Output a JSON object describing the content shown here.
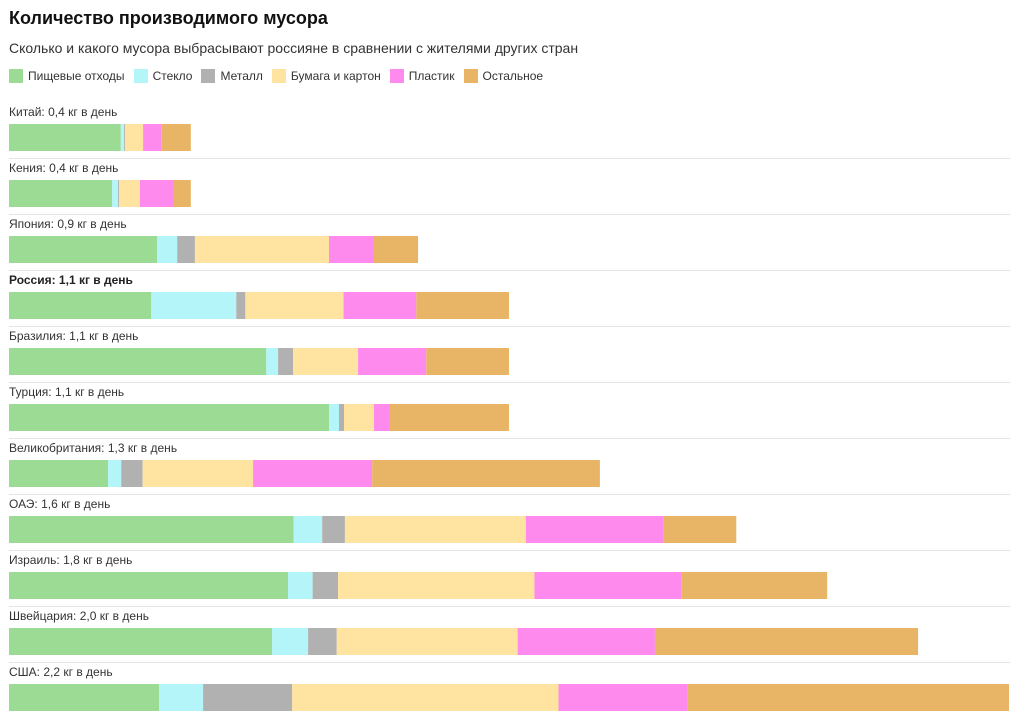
{
  "chart_data": {
    "type": "bar",
    "orientation": "horizontal",
    "stacked": true,
    "title": "Количество производимого мусора",
    "subtitle": "Сколько и какого мусора выбрасывают россияне в сравнении с жителями других стран",
    "legend_placement": "top-left",
    "grid": false,
    "xlim": [
      0,
      2.2
    ],
    "series": [
      {
        "name": "Пищевые отходы",
        "color": "#9cdb94"
      },
      {
        "name": "Стекло",
        "color": "#b3f5f8"
      },
      {
        "name": "Металл",
        "color": "#b1b1b1"
      },
      {
        "name": "Бумага и картон",
        "color": "#ffe3a0"
      },
      {
        "name": "Пластик",
        "color": "#fe8aee"
      },
      {
        "name": "Остальное",
        "color": "#e8b566"
      }
    ],
    "rows": [
      {
        "label": "Китай: 0,4 кг в день",
        "total": 0.4,
        "highlight": false,
        "values": [
          0.246,
          0.007,
          0.002,
          0.04,
          0.04,
          0.065
        ]
      },
      {
        "label": "Кения: 0,4 кг в день",
        "total": 0.4,
        "highlight": false,
        "values": [
          0.227,
          0.013,
          0.002,
          0.046,
          0.075,
          0.037
        ]
      },
      {
        "label": "Япония: 0,9 кг в день",
        "total": 0.9,
        "highlight": false,
        "values": [
          0.326,
          0.044,
          0.039,
          0.295,
          0.099,
          0.097
        ]
      },
      {
        "label": "Россия: 1,1 кг в день",
        "total": 1.1,
        "highlight": true,
        "values": [
          0.313,
          0.187,
          0.02,
          0.216,
          0.16,
          0.204
        ]
      },
      {
        "label": "Бразилия: 1,1 кг в день",
        "total": 1.1,
        "highlight": false,
        "values": [
          0.566,
          0.026,
          0.033,
          0.143,
          0.15,
          0.182
        ]
      },
      {
        "label": "Турция: 1,1 кг в день",
        "total": 1.1,
        "highlight": false,
        "values": [
          0.704,
          0.022,
          0.011,
          0.066,
          0.033,
          0.264
        ]
      },
      {
        "label": "Великобритания: 1,3 кг в день",
        "total": 1.3,
        "highlight": false,
        "values": [
          0.218,
          0.029,
          0.047,
          0.243,
          0.262,
          0.501
        ]
      },
      {
        "label": "ОАЭ: 1,6 кг в день",
        "total": 1.6,
        "highlight": false,
        "values": [
          0.626,
          0.063,
          0.05,
          0.398,
          0.302,
          0.161
        ]
      },
      {
        "label": "Израиль: 1,8 кг в день",
        "total": 1.8,
        "highlight": false,
        "values": [
          0.614,
          0.054,
          0.056,
          0.432,
          0.324,
          0.32
        ]
      },
      {
        "label": "Швейцария: 2,0 кг в день",
        "total": 2.0,
        "highlight": false,
        "values": [
          0.579,
          0.079,
          0.063,
          0.398,
          0.302,
          0.579
        ]
      },
      {
        "label": "США: 2,2 кг в день",
        "total": 2.2,
        "highlight": false,
        "values": [
          0.33,
          0.097,
          0.196,
          0.586,
          0.284,
          0.707
        ]
      }
    ]
  }
}
